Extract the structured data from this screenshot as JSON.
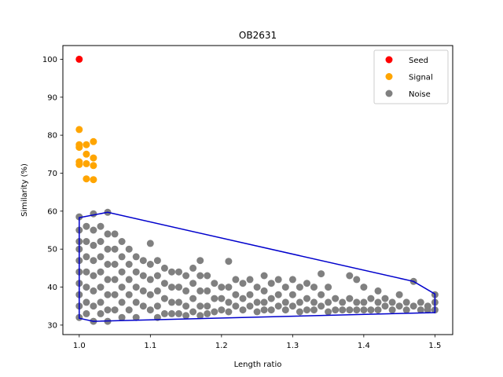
{
  "chart_data": {
    "type": "scatter",
    "title": "OB2631",
    "xlabel": "Length ratio",
    "ylabel": "Similarity (%)",
    "xlim": [
      0.977,
      1.525
    ],
    "ylim": [
      27.5,
      103.6
    ],
    "xticks": [
      1.0,
      1.1,
      1.2,
      1.3,
      1.4,
      1.5
    ],
    "xtick_labels": [
      "1.0",
      "1.1",
      "1.2",
      "1.3",
      "1.4",
      "1.5"
    ],
    "yticks": [
      30,
      40,
      50,
      60,
      70,
      80,
      90,
      100
    ],
    "ytick_labels": [
      "30",
      "40",
      "50",
      "60",
      "70",
      "80",
      "90",
      "100"
    ],
    "grid": false,
    "legend_position": "top-right",
    "series": [
      {
        "name": "Seed",
        "color": "#ff0000",
        "points": [
          [
            1.0,
            100.0
          ]
        ]
      },
      {
        "name": "Signal",
        "color": "#ffa500",
        "points": [
          [
            1.0,
            81.5
          ],
          [
            1.0,
            77.5
          ],
          [
            1.0,
            76.8
          ],
          [
            1.0,
            73.0
          ],
          [
            1.0,
            72.3
          ],
          [
            1.01,
            77.5
          ],
          [
            1.01,
            75.0
          ],
          [
            1.01,
            72.5
          ],
          [
            1.01,
            68.5
          ],
          [
            1.02,
            78.3
          ],
          [
            1.02,
            74.0
          ],
          [
            1.02,
            72.0
          ],
          [
            1.02,
            68.3
          ]
        ]
      },
      {
        "name": "Noise",
        "color": "#808080",
        "points": [
          [
            1.0,
            58.5
          ],
          [
            1.0,
            55.0
          ],
          [
            1.0,
            52.0
          ],
          [
            1.0,
            50.0
          ],
          [
            1.0,
            47.0
          ],
          [
            1.0,
            44.0
          ],
          [
            1.0,
            41.0
          ],
          [
            1.0,
            38.0
          ],
          [
            1.0,
            35.0
          ],
          [
            1.0,
            32.0
          ],
          [
            1.01,
            56.0
          ],
          [
            1.01,
            52.0
          ],
          [
            1.01,
            48.0
          ],
          [
            1.01,
            44.0
          ],
          [
            1.01,
            40.0
          ],
          [
            1.01,
            36.0
          ],
          [
            1.01,
            33.0
          ],
          [
            1.02,
            59.3
          ],
          [
            1.02,
            55.0
          ],
          [
            1.02,
            51.0
          ],
          [
            1.02,
            47.0
          ],
          [
            1.02,
            43.0
          ],
          [
            1.02,
            39.0
          ],
          [
            1.02,
            35.0
          ],
          [
            1.02,
            31.0
          ],
          [
            1.03,
            56.0
          ],
          [
            1.03,
            52.0
          ],
          [
            1.03,
            48.0
          ],
          [
            1.03,
            44.0
          ],
          [
            1.03,
            40.0
          ],
          [
            1.03,
            36.0
          ],
          [
            1.03,
            33.0
          ],
          [
            1.04,
            59.7
          ],
          [
            1.04,
            54.0
          ],
          [
            1.04,
            50.0
          ],
          [
            1.04,
            46.0
          ],
          [
            1.04,
            42.0
          ],
          [
            1.04,
            38.0
          ],
          [
            1.04,
            34.0
          ],
          [
            1.04,
            31.0
          ],
          [
            1.05,
            54.0
          ],
          [
            1.05,
            50.0
          ],
          [
            1.05,
            46.0
          ],
          [
            1.05,
            42.0
          ],
          [
            1.05,
            38.0
          ],
          [
            1.05,
            34.0
          ],
          [
            1.06,
            52.0
          ],
          [
            1.06,
            48.0
          ],
          [
            1.06,
            44.0
          ],
          [
            1.06,
            40.0
          ],
          [
            1.06,
            36.0
          ],
          [
            1.06,
            32.0
          ],
          [
            1.07,
            50.0
          ],
          [
            1.07,
            46.0
          ],
          [
            1.07,
            42.0
          ],
          [
            1.07,
            38.0
          ],
          [
            1.07,
            34.0
          ],
          [
            1.08,
            48.0
          ],
          [
            1.08,
            44.0
          ],
          [
            1.08,
            40.0
          ],
          [
            1.08,
            36.0
          ],
          [
            1.08,
            32.0
          ],
          [
            1.09,
            47.0
          ],
          [
            1.09,
            43.0
          ],
          [
            1.09,
            39.0
          ],
          [
            1.09,
            35.0
          ],
          [
            1.1,
            51.5
          ],
          [
            1.1,
            46.0
          ],
          [
            1.1,
            42.0
          ],
          [
            1.1,
            38.0
          ],
          [
            1.1,
            34.0
          ],
          [
            1.11,
            47.0
          ],
          [
            1.11,
            43.0
          ],
          [
            1.11,
            39.0
          ],
          [
            1.11,
            35.0
          ],
          [
            1.11,
            32.0
          ],
          [
            1.12,
            45.0
          ],
          [
            1.12,
            41.0
          ],
          [
            1.12,
            37.0
          ],
          [
            1.12,
            33.0
          ],
          [
            1.13,
            44.0
          ],
          [
            1.13,
            40.0
          ],
          [
            1.13,
            36.0
          ],
          [
            1.13,
            33.0
          ],
          [
            1.14,
            44.0
          ],
          [
            1.14,
            40.0
          ],
          [
            1.14,
            36.0
          ],
          [
            1.14,
            33.0
          ],
          [
            1.15,
            43.0
          ],
          [
            1.15,
            39.0
          ],
          [
            1.15,
            35.0
          ],
          [
            1.15,
            32.5
          ],
          [
            1.16,
            45.0
          ],
          [
            1.16,
            41.0
          ],
          [
            1.16,
            37.0
          ],
          [
            1.16,
            33.5
          ],
          [
            1.17,
            47.0
          ],
          [
            1.17,
            43.0
          ],
          [
            1.17,
            39.0
          ],
          [
            1.17,
            35.0
          ],
          [
            1.17,
            32.5
          ],
          [
            1.18,
            43.0
          ],
          [
            1.18,
            39.0
          ],
          [
            1.18,
            35.0
          ],
          [
            1.18,
            33.0
          ],
          [
            1.19,
            41.0
          ],
          [
            1.19,
            37.0
          ],
          [
            1.19,
            33.5
          ],
          [
            1.2,
            40.0
          ],
          [
            1.2,
            37.0
          ],
          [
            1.2,
            34.0
          ],
          [
            1.21,
            46.8
          ],
          [
            1.21,
            40.0
          ],
          [
            1.21,
            36.0
          ],
          [
            1.21,
            33.5
          ],
          [
            1.22,
            42.0
          ],
          [
            1.22,
            38.0
          ],
          [
            1.22,
            35.0
          ],
          [
            1.23,
            41.0
          ],
          [
            1.23,
            37.0
          ],
          [
            1.23,
            34.0
          ],
          [
            1.24,
            42.0
          ],
          [
            1.24,
            38.0
          ],
          [
            1.24,
            35.0
          ],
          [
            1.25,
            40.0
          ],
          [
            1.25,
            36.0
          ],
          [
            1.25,
            33.5
          ],
          [
            1.26,
            43.0
          ],
          [
            1.26,
            39.0
          ],
          [
            1.26,
            36.0
          ],
          [
            1.26,
            34.0
          ],
          [
            1.27,
            41.0
          ],
          [
            1.27,
            37.0
          ],
          [
            1.27,
            34.0
          ],
          [
            1.28,
            42.0
          ],
          [
            1.28,
            38.0
          ],
          [
            1.28,
            35.0
          ],
          [
            1.29,
            40.0
          ],
          [
            1.29,
            36.0
          ],
          [
            1.29,
            34.0
          ],
          [
            1.3,
            42.0
          ],
          [
            1.3,
            38.0
          ],
          [
            1.3,
            35.0
          ],
          [
            1.31,
            40.0
          ],
          [
            1.31,
            36.0
          ],
          [
            1.31,
            33.5
          ],
          [
            1.32,
            41.0
          ],
          [
            1.32,
            37.0
          ],
          [
            1.32,
            34.0
          ],
          [
            1.33,
            40.0
          ],
          [
            1.33,
            36.0
          ],
          [
            1.33,
            34.0
          ],
          [
            1.34,
            43.5
          ],
          [
            1.34,
            38.0
          ],
          [
            1.34,
            35.0
          ],
          [
            1.35,
            40.0
          ],
          [
            1.35,
            36.0
          ],
          [
            1.35,
            33.5
          ],
          [
            1.36,
            37.0
          ],
          [
            1.36,
            34.0
          ],
          [
            1.37,
            36.0
          ],
          [
            1.37,
            34.0
          ],
          [
            1.38,
            43.0
          ],
          [
            1.38,
            37.0
          ],
          [
            1.38,
            34.0
          ],
          [
            1.39,
            42.0
          ],
          [
            1.39,
            36.0
          ],
          [
            1.39,
            34.0
          ],
          [
            1.4,
            40.0
          ],
          [
            1.4,
            36.0
          ],
          [
            1.4,
            34.0
          ],
          [
            1.41,
            37.0
          ],
          [
            1.41,
            34.0
          ],
          [
            1.42,
            39.0
          ],
          [
            1.42,
            36.0
          ],
          [
            1.42,
            34.0
          ],
          [
            1.43,
            37.0
          ],
          [
            1.43,
            35.0
          ],
          [
            1.44,
            36.0
          ],
          [
            1.44,
            34.0
          ],
          [
            1.45,
            38.0
          ],
          [
            1.45,
            35.0
          ],
          [
            1.46,
            36.0
          ],
          [
            1.46,
            34.0
          ],
          [
            1.47,
            41.5
          ],
          [
            1.47,
            35.0
          ],
          [
            1.48,
            36.0
          ],
          [
            1.48,
            34.0
          ],
          [
            1.49,
            35.0
          ],
          [
            1.49,
            34.0
          ],
          [
            1.5,
            38.0
          ],
          [
            1.5,
            36.0
          ],
          [
            1.5,
            34.0
          ]
        ]
      }
    ],
    "hull": {
      "color": "#0000cc",
      "points": [
        [
          1.0,
          58.3
        ],
        [
          1.04,
          59.7
        ],
        [
          1.47,
          41.5
        ],
        [
          1.5,
          38.2
        ],
        [
          1.5,
          33.3
        ],
        [
          1.02,
          31.0
        ],
        [
          1.0,
          31.8
        ]
      ]
    }
  }
}
